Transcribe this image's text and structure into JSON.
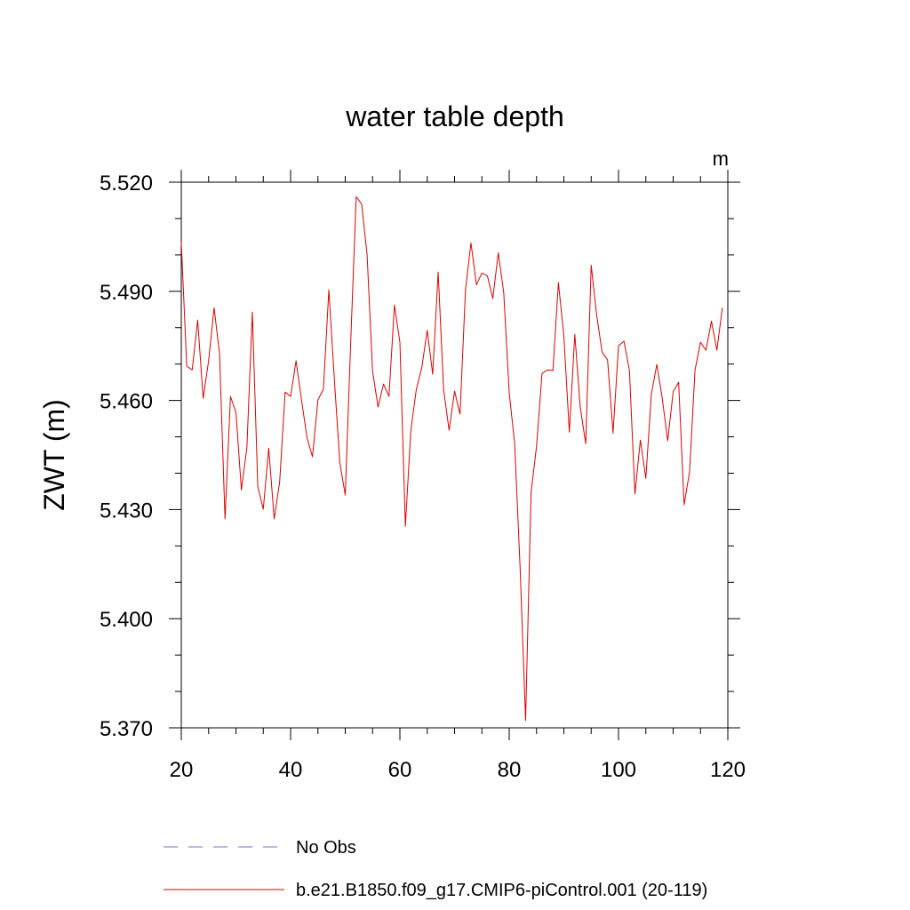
{
  "chart_data": {
    "type": "line",
    "title": "water table depth",
    "units": "m",
    "xlabel": "",
    "ylabel": "ZWT  (m)",
    "xlim": [
      20,
      120
    ],
    "ylim": [
      5.37,
      5.52
    ],
    "xticks": [
      20,
      40,
      60,
      80,
      100,
      120
    ],
    "xtick_labels": [
      "20",
      "40",
      "60",
      "80",
      "100",
      "120"
    ],
    "yticks": [
      5.37,
      5.4,
      5.43,
      5.46,
      5.49,
      5.52
    ],
    "ytick_labels": [
      "5.370",
      "5.400",
      "5.430",
      "5.460",
      "5.490",
      "5.520"
    ],
    "grid": false,
    "legend_position": "bottom",
    "legend": [
      {
        "label": "No Obs",
        "color": "#7b68c8",
        "style": "dashed"
      },
      {
        "label": "b.e21.B1850.f09_g17.CMIP6-piControl.001 (20-119)",
        "color": "#e00000",
        "style": "solid"
      }
    ],
    "series": [
      {
        "name": "b.e21.B1850.f09_g17.CMIP6-piControl.001 (20-119)",
        "color": "#e00000",
        "x": [
          20,
          21,
          22,
          23,
          24,
          25,
          26,
          27,
          28,
          29,
          30,
          31,
          32,
          33,
          34,
          35,
          36,
          37,
          38,
          39,
          40,
          41,
          42,
          43,
          44,
          45,
          46,
          47,
          48,
          49,
          50,
          51,
          52,
          53,
          54,
          55,
          56,
          57,
          58,
          59,
          60,
          61,
          62,
          63,
          64,
          65,
          66,
          67,
          68,
          69,
          70,
          71,
          72,
          73,
          74,
          75,
          76,
          77,
          78,
          79,
          80,
          81,
          82,
          83,
          84,
          85,
          86,
          87,
          88,
          89,
          90,
          91,
          92,
          93,
          94,
          95,
          96,
          97,
          98,
          99,
          100,
          101,
          102,
          103,
          104,
          105,
          106,
          107,
          108,
          109,
          110,
          111,
          112,
          113,
          114,
          115,
          116,
          117,
          118,
          119
        ],
        "values": [
          5.5035,
          5.4694,
          5.4684,
          5.4821,
          5.4606,
          5.4709,
          5.4855,
          5.4728,
          5.4274,
          5.4611,
          5.4567,
          5.4354,
          5.4469,
          5.4843,
          5.4363,
          5.4301,
          5.4469,
          5.4274,
          5.4376,
          5.4623,
          5.4611,
          5.4709,
          5.4601,
          5.4498,
          5.4445,
          5.4601,
          5.4631,
          5.4904,
          5.466,
          5.443,
          5.434,
          5.476,
          5.516,
          5.514,
          5.5,
          5.468,
          5.4582,
          5.4645,
          5.4611,
          5.4862,
          5.476,
          5.4254,
          5.4518,
          5.463,
          5.469,
          5.4793,
          5.4672,
          5.4953,
          5.463,
          5.4518,
          5.4626,
          5.4562,
          5.4904,
          5.5033,
          5.4918,
          5.495,
          5.4943,
          5.488,
          5.5006,
          5.4896,
          5.4621,
          5.4481,
          5.4138,
          5.372,
          5.4347,
          5.4474,
          5.4674,
          5.4684,
          5.4682,
          5.4924,
          5.4777,
          5.4513,
          5.4782,
          5.4581,
          5.4481,
          5.4972,
          5.4835,
          5.4733,
          5.4711,
          5.451,
          5.475,
          5.4763,
          5.4682,
          5.4343,
          5.4491,
          5.4386,
          5.4616,
          5.4699,
          5.4606,
          5.4489,
          5.4624,
          5.465,
          5.4313,
          5.4404,
          5.4684,
          5.476,
          5.4738,
          5.4818,
          5.4738,
          5.4855
        ]
      }
    ]
  }
}
